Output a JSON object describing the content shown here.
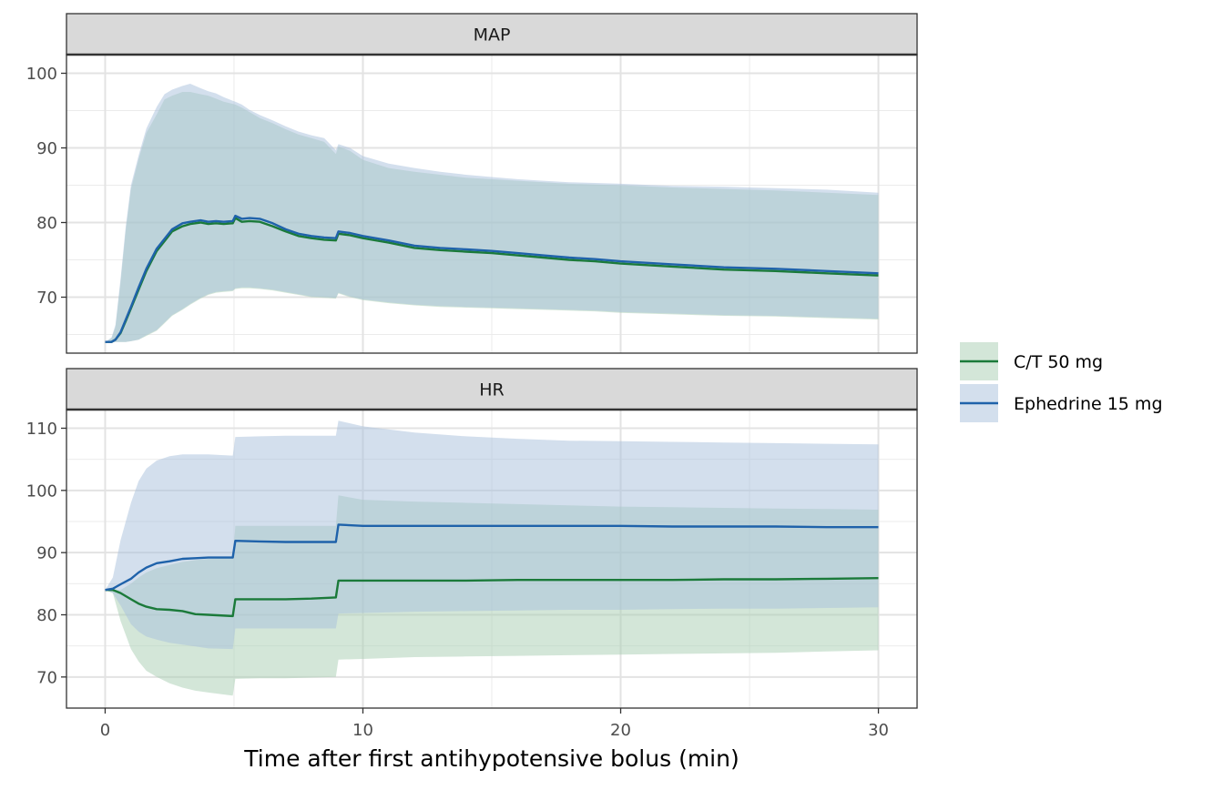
{
  "chart_data": {
    "type": "line",
    "xlabel": "Time after first antihypotensive bolus (min)",
    "xlim": [
      -1.5,
      31.5
    ],
    "x_ticks": [
      0,
      10,
      20,
      30
    ],
    "x_tick_labels": [
      "0",
      "10",
      "20",
      "30"
    ],
    "x_minor_ticks": [
      5,
      15,
      25
    ],
    "grid": true,
    "legend_position": "right",
    "legend": [
      {
        "name": "C/T 50 mg",
        "color": "#1b7a3a",
        "fill": "#a8ceb2"
      },
      {
        "name": "Ephedrine 15 mg",
        "color": "#1f62aa",
        "fill": "#a7bfdb"
      }
    ],
    "panels": [
      {
        "strip": "MAP",
        "ylim": [
          62.5,
          102.5
        ],
        "y_ticks": [
          70,
          80,
          90,
          100
        ],
        "y_tick_labels": [
          "70",
          "80",
          "90",
          "100"
        ],
        "y_minor_ticks": [
          65,
          75,
          85,
          95
        ],
        "series": [
          {
            "name": "C/T 50 mg",
            "x": [
              0,
              0.25,
              0.4,
              0.6,
              0.8,
              1,
              1.3,
              1.6,
              2,
              2.3,
              2.6,
              3,
              3.3,
              3.7,
              4,
              4.3,
              4.6,
              4.95,
              5.05,
              5.3,
              5.6,
              6,
              6.5,
              7,
              7.5,
              8,
              8.5,
              8.95,
              9.05,
              9.5,
              10,
              11,
              12,
              13,
              14,
              15,
              16,
              17,
              18,
              19,
              20,
              22,
              24,
              26,
              28,
              30
            ],
            "mid": [
              64,
              64,
              64.3,
              65.2,
              66.8,
              68.5,
              71,
              73.5,
              76.2,
              77.5,
              78.8,
              79.5,
              79.8,
              80,
              79.8,
              79.9,
              79.8,
              79.9,
              80.6,
              80.1,
              80.2,
              80.1,
              79.5,
              78.8,
              78.2,
              77.9,
              77.7,
              77.6,
              78.5,
              78.3,
              77.9,
              77.3,
              76.6,
              76.3,
              76.1,
              75.9,
              75.6,
              75.3,
              75,
              74.8,
              74.5,
              74.1,
              73.7,
              73.5,
              73.2,
              72.9
            ],
            "lower": [
              64,
              64,
              64,
              64,
              64,
              64.1,
              64.3,
              64.8,
              65.5,
              66.5,
              67.5,
              68.3,
              69,
              69.8,
              70.3,
              70.6,
              70.7,
              70.8,
              71.1,
              71.2,
              71.2,
              71.1,
              70.9,
              70.6,
              70.3,
              70,
              69.9,
              69.8,
              70.5,
              70,
              69.6,
              69.2,
              68.9,
              68.7,
              68.6,
              68.5,
              68.4,
              68.3,
              68.2,
              68.1,
              67.9,
              67.7,
              67.5,
              67.4,
              67.2,
              67
            ],
            "upper": [
              64,
              64.5,
              66,
              72,
              79,
              84.5,
              88.5,
              92,
              94.5,
              96.5,
              97,
              97.5,
              97.5,
              97.2,
              97,
              96.6,
              96.2,
              95.9,
              95.8,
              95.4,
              94.8,
              94,
              93.3,
              92.5,
              91.8,
              91.3,
              90.8,
              89.2,
              90.2,
              89.6,
              88.4,
              87.3,
              86.8,
              86.4,
              86,
              85.8,
              85.6,
              85.4,
              85.2,
              85.1,
              85,
              84.7,
              84.5,
              84.3,
              84,
              83.7
            ]
          },
          {
            "name": "Ephedrine 15 mg",
            "x": [
              0,
              0.25,
              0.4,
              0.6,
              0.8,
              1,
              1.3,
              1.6,
              2,
              2.3,
              2.6,
              3,
              3.3,
              3.7,
              4,
              4.3,
              4.6,
              4.95,
              5.05,
              5.3,
              5.6,
              6,
              6.5,
              7,
              7.5,
              8,
              8.5,
              8.95,
              9.05,
              9.5,
              10,
              11,
              12,
              13,
              14,
              15,
              16,
              17,
              18,
              19,
              20,
              22,
              24,
              26,
              28,
              30
            ],
            "mid": [
              64,
              64,
              64.3,
              65.3,
              67,
              68.7,
              71.3,
              73.8,
              76.5,
              77.8,
              79.1,
              79.9,
              80.1,
              80.3,
              80.1,
              80.2,
              80.1,
              80.2,
              80.9,
              80.5,
              80.6,
              80.5,
              79.9,
              79.1,
              78.5,
              78.2,
              78,
              77.9,
              78.8,
              78.6,
              78.2,
              77.6,
              76.9,
              76.6,
              76.4,
              76.2,
              75.9,
              75.6,
              75.3,
              75.1,
              74.8,
              74.4,
              74,
              73.8,
              73.5,
              73.2
            ],
            "lower": [
              64,
              64,
              64,
              64,
              64,
              64.1,
              64.3,
              64.9,
              65.6,
              66.6,
              67.6,
              68.4,
              69.1,
              69.9,
              70.4,
              70.7,
              70.8,
              70.9,
              71.2,
              71.3,
              71.3,
              71.2,
              71,
              70.7,
              70.4,
              70.1,
              70,
              69.9,
              70.6,
              70.1,
              69.7,
              69.3,
              69,
              68.8,
              68.7,
              68.6,
              68.5,
              68.4,
              68.3,
              68.2,
              68,
              67.8,
              67.6,
              67.5,
              67.3,
              67.1
            ],
            "upper": [
              64,
              64.6,
              66.3,
              72.5,
              79.5,
              85,
              89,
              92.6,
              95.5,
              97.2,
              97.8,
              98.3,
              98.6,
              98,
              97.6,
              97.3,
              96.8,
              96.3,
              96.2,
              95.8,
              95.1,
              94.4,
              93.7,
              92.9,
              92.2,
              91.7,
              91.3,
              89.7,
              90.5,
              90,
              88.9,
              87.9,
              87.3,
              86.8,
              86.4,
              86.1,
              85.8,
              85.6,
              85.4,
              85.3,
              85.2,
              84.9,
              84.8,
              84.6,
              84.4,
              84
            ]
          }
        ]
      },
      {
        "strip": "HR",
        "ylim": [
          65,
          113
        ],
        "y_ticks": [
          70,
          80,
          90,
          100,
          110
        ],
        "y_tick_labels": [
          "70",
          "80",
          "90",
          "100",
          "110"
        ],
        "y_minor_ticks": [
          75,
          85,
          95,
          105
        ],
        "series": [
          {
            "name": "C/T 50 mg",
            "x": [
              0,
              0.3,
              0.6,
              1,
              1.3,
              1.6,
              2,
              2.5,
              3,
              3.5,
              4,
              4.95,
              5.05,
              6,
              7,
              8,
              8.95,
              9.05,
              10,
              12,
              14,
              16,
              18,
              20,
              22,
              24,
              26,
              28,
              30
            ],
            "mid": [
              84,
              84,
              83.5,
              82.5,
              81.8,
              81.3,
              80.9,
              80.8,
              80.6,
              80.1,
              80,
              79.8,
              82.5,
              82.5,
              82.5,
              82.6,
              82.8,
              85.5,
              85.5,
              85.5,
              85.5,
              85.6,
              85.6,
              85.6,
              85.6,
              85.7,
              85.7,
              85.8,
              85.9
            ],
            "lower": [
              84,
              83.5,
              79,
              74.5,
              72.5,
              71,
              70,
              69,
              68.3,
              67.8,
              67.5,
              67,
              69.7,
              69.8,
              69.8,
              69.9,
              70,
              72.8,
              72.9,
              73.2,
              73.3,
              73.4,
              73.5,
              73.6,
              73.7,
              73.8,
              73.9,
              74.1,
              74.3
            ],
            "upper": [
              84,
              84,
              84,
              85,
              86,
              86.8,
              87.5,
              88,
              88.5,
              88.8,
              89,
              89.2,
              94.3,
              94.3,
              94.3,
              94.3,
              94.3,
              99.2,
              98.5,
              98.2,
              98,
              97.8,
              97.6,
              97.4,
              97.3,
              97.2,
              97.1,
              97,
              96.9
            ]
          },
          {
            "name": "Ephedrine 15 mg",
            "x": [
              0,
              0.3,
              0.6,
              1,
              1.3,
              1.6,
              2,
              2.5,
              3,
              3.5,
              4,
              4.95,
              5.05,
              6,
              7,
              8,
              8.95,
              9.05,
              10,
              12,
              14,
              16,
              18,
              20,
              22,
              24,
              26,
              28,
              30
            ],
            "mid": [
              84,
              84.2,
              84.9,
              85.8,
              86.8,
              87.6,
              88.3,
              88.6,
              89,
              89.1,
              89.2,
              89.2,
              91.9,
              91.8,
              91.7,
              91.7,
              91.7,
              94.5,
              94.3,
              94.3,
              94.3,
              94.3,
              94.3,
              94.3,
              94.2,
              94.2,
              94.2,
              94.1,
              94.1
            ],
            "lower": [
              84,
              83.5,
              81.5,
              78.5,
              77.3,
              76.5,
              76,
              75.5,
              75.2,
              74.9,
              74.6,
              74.5,
              77.8,
              77.8,
              77.8,
              77.8,
              77.8,
              80.2,
              80.3,
              80.5,
              80.6,
              80.7,
              80.8,
              80.8,
              80.9,
              81,
              81,
              81.1,
              81.2
            ],
            "upper": [
              84,
              86,
              92,
              98,
              101.5,
              103.5,
              104.8,
              105.5,
              105.8,
              105.8,
              105.8,
              105.6,
              108.6,
              108.7,
              108.8,
              108.8,
              108.8,
              111.2,
              110.3,
              109.3,
              108.7,
              108.3,
              108,
              107.9,
              107.8,
              107.7,
              107.6,
              107.5,
              107.4
            ]
          }
        ]
      }
    ]
  }
}
